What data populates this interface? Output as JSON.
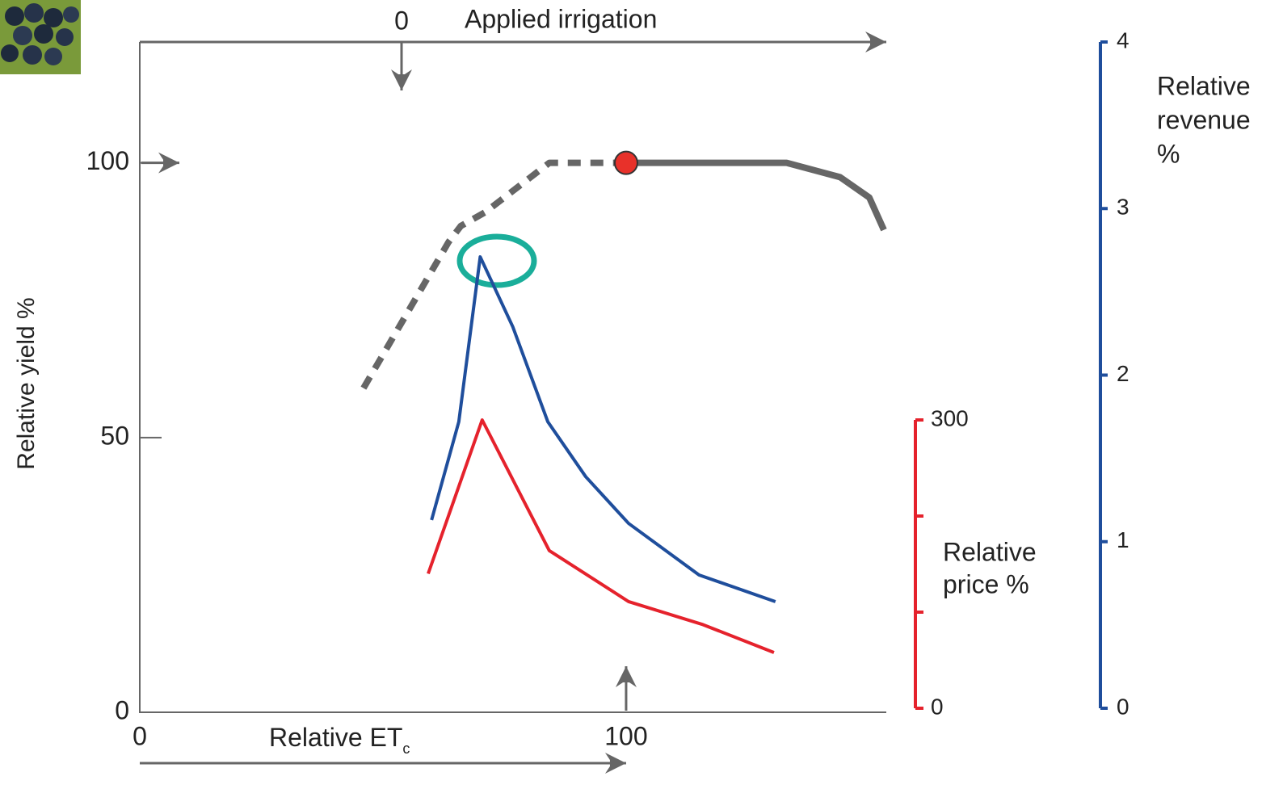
{
  "chart_data": {
    "type": "line",
    "x_label": "Relative ET",
    "x_label_subscript": "c",
    "top_axis_label": "Applied irrigation",
    "y_label": "Relative yield %",
    "y2_label": [
      "Relative",
      "revenue",
      "%"
    ],
    "y3_label": [
      "Relative",
      "price %"
    ],
    "xlim": [
      0,
      153.5
    ],
    "xticks": [
      0,
      100
    ],
    "x2lim": [
      -54,
      100
    ],
    "x2ticks": [
      0
    ],
    "ylim": [
      0,
      122
    ],
    "yticks": [
      0,
      50,
      100
    ],
    "y2lim": [
      0,
      4
    ],
    "y2ticks": [
      0,
      1,
      2,
      3,
      4
    ],
    "y2_color": "#1f4e9c",
    "y3lim": [
      0,
      300
    ],
    "y3ticks": [
      0,
      300
    ],
    "y3_minor_ticks": [
      100,
      200
    ],
    "y3_color": "#e5222c",
    "series": [
      {
        "axis": "y",
        "color": "#666666",
        "dash": true,
        "x": [
          46,
          63.5,
          66,
          71,
          84.2,
          100
        ],
        "values": [
          59,
          85.6,
          88.5,
          91,
          100,
          100
        ]
      },
      {
        "axis": "y",
        "color": "#666666",
        "dash": false,
        "x": [
          100,
          133,
          144,
          150,
          153
        ],
        "values": [
          100,
          100,
          97.4,
          93.7,
          87.8
        ]
      },
      {
        "axis": "y2",
        "color": "#1f4e9c",
        "dash": false,
        "x": [
          60,
          65.6,
          70,
          76.7,
          83.9,
          91.7,
          100.5,
          115,
          130.7
        ],
        "values": [
          1.13,
          1.72,
          2.71,
          2.29,
          1.72,
          1.39,
          1.11,
          0.8,
          0.64
        ]
      },
      {
        "axis": "y3",
        "color": "#e5222c",
        "dash": false,
        "x": [
          59.3,
          70.4,
          84.2,
          100.5,
          115.8,
          130.4
        ],
        "values": [
          140,
          300,
          164,
          111,
          87,
          58
        ]
      }
    ],
    "marker": {
      "x": 100,
      "y": 100,
      "color": "#e8312a"
    }
  }
}
